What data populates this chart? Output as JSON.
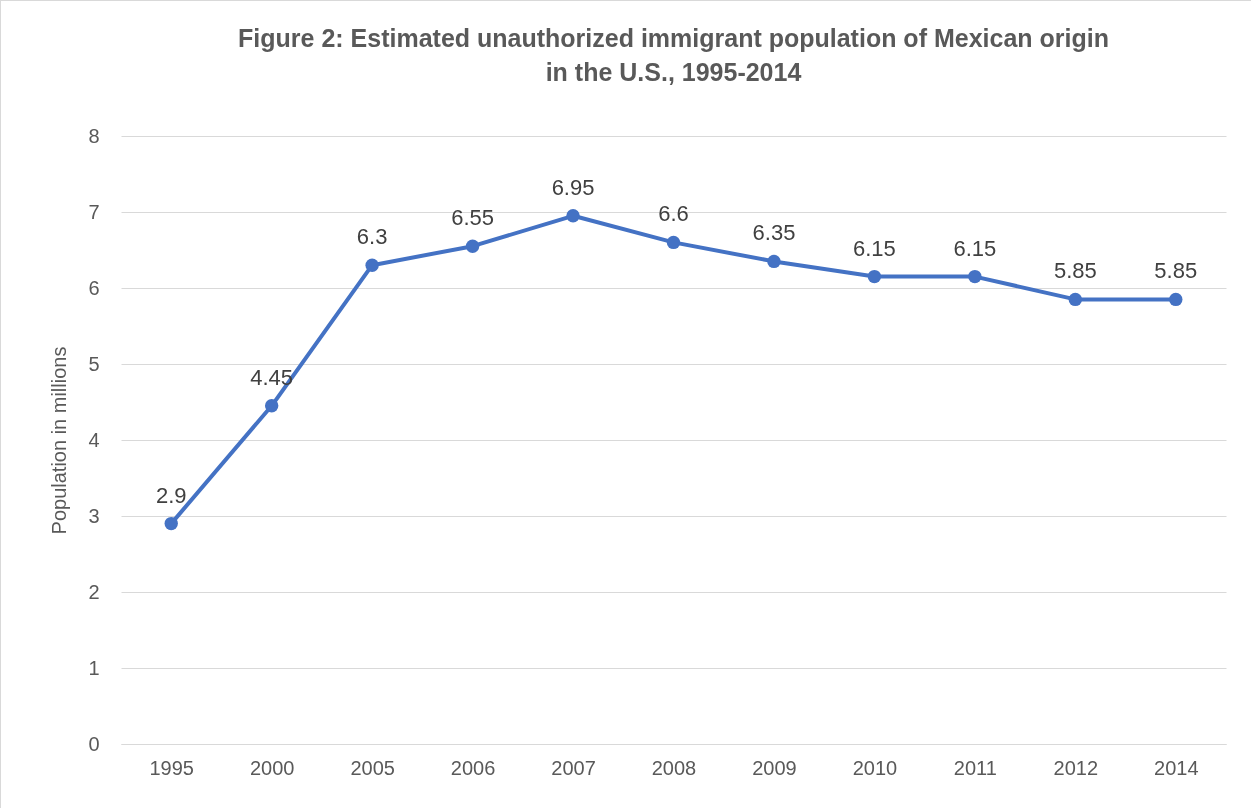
{
  "chart_data": {
    "type": "line",
    "title": "Figure 2: Estimated unauthorized immigrant population of Mexican origin\nin the U.S., 1995-2014",
    "ylabel": "Population in millions",
    "categories": [
      "1995",
      "2000",
      "2005",
      "2006",
      "2007",
      "2008",
      "2009",
      "2010",
      "2011",
      "2012",
      "2014"
    ],
    "series": [
      {
        "color": "#4472c4",
        "values": [
          2.9,
          4.45,
          6.3,
          6.55,
          6.95,
          6.6,
          6.35,
          6.15,
          6.15,
          5.85,
          5.85
        ]
      }
    ],
    "ylim": [
      0,
      8
    ],
    "yticks": [
      0,
      1,
      2,
      3,
      4,
      5,
      6,
      7,
      8
    ],
    "grid": "y",
    "marker": "circle",
    "line_style": "solid",
    "data_labels": true,
    "legend": false
  }
}
